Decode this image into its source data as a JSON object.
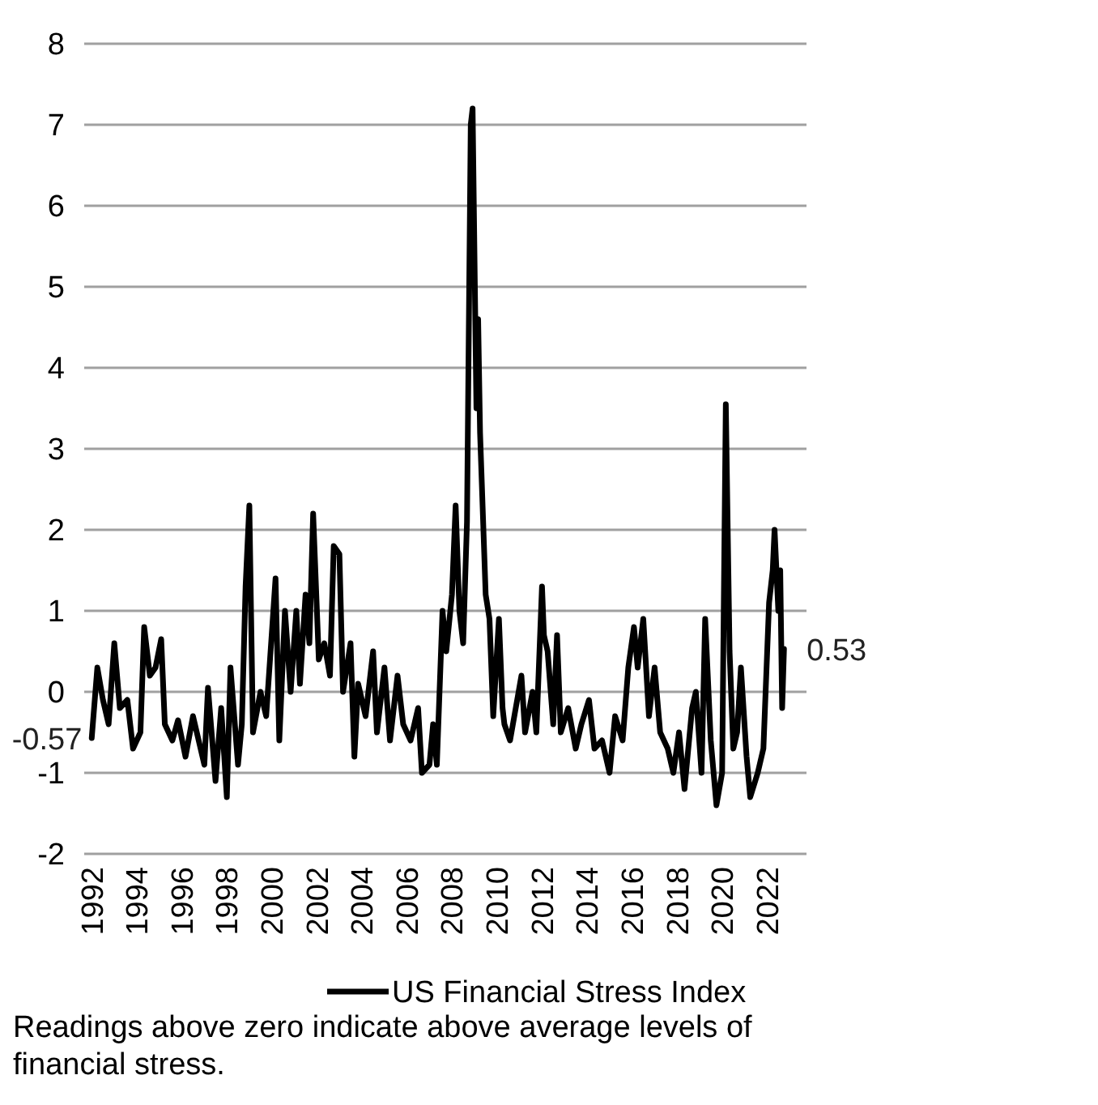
{
  "chart_data": {
    "type": "line",
    "x": [
      "1992-01",
      "1992-04",
      "1992-07",
      "1992-10",
      "1993-01",
      "1993-04",
      "1993-08",
      "1993-11",
      "1994-03",
      "1994-05",
      "1994-08",
      "1994-11",
      "1995-02",
      "1995-04",
      "1995-08",
      "1995-11",
      "1996-03",
      "1996-07",
      "1996-10",
      "1997-01",
      "1997-03",
      "1997-07",
      "1997-10",
      "1998-01",
      "1998-03",
      "1998-07",
      "1998-09",
      "1998-11",
      "1999-01",
      "1999-03",
      "1999-07",
      "1999-10",
      "2000-03",
      "2000-05",
      "2000-08",
      "2000-11",
      "2001-02",
      "2001-04",
      "2001-07",
      "2001-09",
      "2001-11",
      "2002-02",
      "2002-05",
      "2002-08",
      "2002-10",
      "2003-01",
      "2003-03",
      "2003-07",
      "2003-09",
      "2003-11",
      "2004-03",
      "2004-07",
      "2004-09",
      "2005-01",
      "2005-04",
      "2005-08",
      "2005-11",
      "2006-03",
      "2006-07",
      "2006-09",
      "2007-01",
      "2007-03",
      "2007-05",
      "2007-08",
      "2007-10",
      "2008-01",
      "2008-03",
      "2008-05",
      "2008-07",
      "2008-09",
      "2008-11",
      "2008-12",
      "2009-02",
      "2009-03",
      "2009-04",
      "2009-07",
      "2009-09",
      "2009-11",
      "2010-02",
      "2010-04",
      "2010-05",
      "2010-08",
      "2010-11",
      "2011-02",
      "2011-04",
      "2011-08",
      "2011-10",
      "2012-01",
      "2012-02",
      "2012-04",
      "2012-07",
      "2012-09",
      "2012-11",
      "2013-03",
      "2013-07",
      "2013-10",
      "2014-02",
      "2014-05",
      "2014-09",
      "2015-01",
      "2015-04",
      "2015-08",
      "2015-11",
      "2016-02",
      "2016-04",
      "2016-07",
      "2016-10",
      "2017-01",
      "2017-04",
      "2017-08",
      "2017-11",
      "2018-02",
      "2018-05",
      "2018-09",
      "2018-11",
      "2019-02",
      "2019-04",
      "2019-07",
      "2019-10",
      "2020-01",
      "2020-03",
      "2020-05",
      "2020-07",
      "2020-09",
      "2020-11",
      "2021-02",
      "2021-04",
      "2021-08",
      "2021-11",
      "2022-02",
      "2022-04",
      "2022-05",
      "2022-07",
      "2022-08",
      "2022-09",
      "2022-10"
    ],
    "series": [
      {
        "name": "US Financial Stress Index",
        "color": "#000000",
        "values": [
          -0.57,
          0.3,
          -0.1,
          -0.4,
          0.6,
          -0.2,
          -0.1,
          -0.7,
          -0.5,
          0.8,
          0.2,
          0.3,
          0.65,
          -0.4,
          -0.6,
          -0.35,
          -0.8,
          -0.3,
          -0.6,
          -0.9,
          0.05,
          -1.1,
          -0.2,
          -1.3,
          0.3,
          -0.9,
          -0.4,
          1.3,
          2.3,
          -0.5,
          0.0,
          -0.3,
          1.4,
          -0.6,
          1.0,
          0.0,
          1.0,
          0.1,
          1.2,
          0.6,
          2.2,
          0.4,
          0.6,
          0.2,
          1.8,
          1.7,
          0.0,
          0.6,
          -0.8,
          0.1,
          -0.3,
          0.5,
          -0.5,
          0.3,
          -0.6,
          0.2,
          -0.4,
          -0.6,
          -0.2,
          -1.0,
          -0.9,
          -0.4,
          -0.9,
          1.0,
          0.5,
          1.2,
          2.3,
          1.0,
          0.6,
          2.1,
          7.0,
          7.2,
          3.5,
          4.6,
          3.2,
          1.2,
          0.9,
          -0.3,
          0.9,
          -0.2,
          -0.4,
          -0.6,
          -0.2,
          0.2,
          -0.5,
          0.0,
          -0.5,
          1.3,
          0.7,
          0.5,
          -0.4,
          0.7,
          -0.5,
          -0.2,
          -0.7,
          -0.4,
          -0.1,
          -0.7,
          -0.6,
          -1.0,
          -0.3,
          -0.6,
          0.3,
          0.8,
          0.3,
          0.9,
          -0.3,
          0.3,
          -0.5,
          -0.7,
          -1.0,
          -0.5,
          -1.2,
          -0.2,
          0.0,
          -1.0,
          0.9,
          -0.6,
          -1.4,
          -1.0,
          3.55,
          0.5,
          -0.7,
          -0.5,
          0.3,
          -0.8,
          -1.3,
          -1.0,
          -0.7,
          1.1,
          1.5,
          2.0,
          1.0,
          1.5,
          -0.2,
          0.53
        ],
        "value_labels": [
          "-0.57",
          null,
          null,
          null,
          null,
          null,
          null,
          null,
          null,
          null,
          null,
          null,
          null,
          null,
          null,
          null,
          null,
          null,
          null,
          null,
          null,
          null,
          null,
          null,
          null,
          null,
          null,
          null,
          null,
          null,
          null,
          null,
          null,
          null,
          null,
          null,
          null,
          null,
          null,
          null,
          null,
          null,
          null,
          null,
          null,
          null,
          null,
          null,
          null,
          null,
          null,
          null,
          null,
          null,
          null,
          null,
          null,
          null,
          null,
          null,
          null,
          null,
          null,
          null,
          null,
          null,
          null,
          null,
          null,
          null,
          null,
          null,
          null,
          null,
          null,
          null,
          null,
          null,
          null,
          null,
          null,
          null,
          null,
          null,
          null,
          null,
          null,
          null,
          null,
          null,
          null,
          null,
          null,
          null,
          null,
          null,
          null,
          null,
          null,
          null,
          null,
          null,
          null,
          null,
          null,
          null,
          null,
          null,
          null,
          null,
          null,
          null,
          null,
          null,
          null,
          null,
          null,
          null,
          null,
          null,
          null,
          null,
          null,
          null,
          null,
          null,
          null,
          null,
          null,
          null,
          null,
          null,
          null,
          null,
          null,
          "0.53"
        ]
      }
    ],
    "xlim": [
      "1991-09",
      "2023-10"
    ],
    "xticks": [
      {
        "value": "1992",
        "label": "1992"
      },
      {
        "value": "1994",
        "label": "1994"
      },
      {
        "value": "1996",
        "label": "1996"
      },
      {
        "value": "1998",
        "label": "1998"
      },
      {
        "value": "2000",
        "label": "2000"
      },
      {
        "value": "2002",
        "label": "2002"
      },
      {
        "value": "2004",
        "label": "2004"
      },
      {
        "value": "2006",
        "label": "2006"
      },
      {
        "value": "2008",
        "label": "2008"
      },
      {
        "value": "2010",
        "label": "2010"
      },
      {
        "value": "2012",
        "label": "2012"
      },
      {
        "value": "2014",
        "label": "2014"
      },
      {
        "value": "2016",
        "label": "2016"
      },
      {
        "value": "2018",
        "label": "2018"
      },
      {
        "value": "2020",
        "label": "2020"
      },
      {
        "value": "2022",
        "label": "2022"
      }
    ],
    "ylim": [
      -2,
      8
    ],
    "yticks": [
      -2,
      -1,
      0,
      1,
      2,
      3,
      4,
      5,
      6,
      7,
      8
    ],
    "grid": "y",
    "legend": "bottom",
    "line_style": "solid",
    "annotations": [
      "Readings above zero indicate above average levels of financial stress."
    ]
  }
}
